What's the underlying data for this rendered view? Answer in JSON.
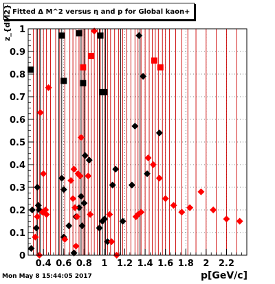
{
  "title": "Fitted Δ M^2 versus η and p for Global kaon+",
  "timestamp": "Mon May  8 15:44:05 2017",
  "colors": {
    "series_black": "#000000",
    "series_red": "#ff0000",
    "vline_red": "#cc0000",
    "vline_black": "#000000"
  },
  "chart_data": {
    "type": "scatter",
    "xlabel": "p[GeV/c]",
    "ylabel": "z_{dM2}",
    "xlim": [
      0.25,
      2.4
    ],
    "ylim": [
      0,
      1
    ],
    "x_ticks": [
      "0.4",
      "0.6",
      "0.8",
      "1",
      "1.2",
      "1.4",
      "1.6",
      "1.8",
      "2",
      "2.2"
    ],
    "y_ticks": [
      "0",
      "0.1",
      "0.2",
      "0.3",
      "0.4",
      "0.5",
      "0.6",
      "0.7",
      "0.8",
      "0.9",
      "1"
    ],
    "grid": true,
    "series": [
      {
        "color": "black",
        "markers": [
          {
            "x": 0.275,
            "y": 0.82,
            "shape": "square"
          },
          {
            "x": 0.58,
            "y": 0.97,
            "shape": "square"
          },
          {
            "x": 0.6,
            "y": 0.77,
            "shape": "square"
          },
          {
            "x": 0.75,
            "y": 0.98,
            "shape": "square"
          },
          {
            "x": 0.79,
            "y": 0.76,
            "shape": "square"
          },
          {
            "x": 0.96,
            "y": 0.97,
            "shape": "square"
          },
          {
            "x": 0.98,
            "y": 0.72,
            "shape": "square"
          },
          {
            "x": 1.0,
            "y": 0.72,
            "shape": "square"
          },
          {
            "x": 0.28,
            "y": 0.03,
            "shape": "diamond"
          },
          {
            "x": 0.29,
            "y": 0.2,
            "shape": "diamond"
          },
          {
            "x": 0.33,
            "y": 0.12,
            "shape": "diamond"
          },
          {
            "x": 0.34,
            "y": 0.3,
            "shape": "diamond"
          },
          {
            "x": 0.35,
            "y": 0.22,
            "shape": "diamond"
          },
          {
            "x": 0.36,
            "y": 0.2,
            "shape": "diamond"
          },
          {
            "x": 0.58,
            "y": 0.34,
            "shape": "diamond"
          },
          {
            "x": 0.6,
            "y": 0.29,
            "shape": "diamond"
          },
          {
            "x": 0.6,
            "y": 0.08,
            "shape": "diamond"
          },
          {
            "x": 0.65,
            "y": 0.13,
            "shape": "diamond"
          },
          {
            "x": 0.7,
            "y": 0.01,
            "shape": "diamond"
          },
          {
            "x": 0.72,
            "y": 0.17,
            "shape": "diamond"
          },
          {
            "x": 0.75,
            "y": 0.21,
            "shape": "diamond"
          },
          {
            "x": 0.77,
            "y": 0.26,
            "shape": "diamond"
          },
          {
            "x": 0.78,
            "y": 0.13,
            "shape": "diamond"
          },
          {
            "x": 0.8,
            "y": 0.23,
            "shape": "diamond"
          },
          {
            "x": 0.81,
            "y": 0.44,
            "shape": "diamond"
          },
          {
            "x": 0.85,
            "y": 0.42,
            "shape": "diamond"
          },
          {
            "x": 0.95,
            "y": 0.12,
            "shape": "diamond"
          },
          {
            "x": 0.98,
            "y": 0.15,
            "shape": "diamond"
          },
          {
            "x": 1.0,
            "y": 0.16,
            "shape": "diamond"
          },
          {
            "x": 1.03,
            "y": 0.06,
            "shape": "diamond"
          },
          {
            "x": 1.08,
            "y": 0.31,
            "shape": "diamond"
          },
          {
            "x": 1.11,
            "y": 0.38,
            "shape": "diamond"
          },
          {
            "x": 1.18,
            "y": 0.15,
            "shape": "diamond"
          },
          {
            "x": 1.27,
            "y": 0.31,
            "shape": "diamond"
          },
          {
            "x": 1.3,
            "y": 0.57,
            "shape": "diamond"
          },
          {
            "x": 1.34,
            "y": 0.97,
            "shape": "diamond"
          },
          {
            "x": 1.38,
            "y": 0.79,
            "shape": "diamond"
          },
          {
            "x": 1.42,
            "y": 0.36,
            "shape": "diamond"
          },
          {
            "x": 1.54,
            "y": 0.54,
            "shape": "diamond"
          }
        ]
      },
      {
        "color": "red",
        "markers": [
          {
            "x": 0.79,
            "y": 0.83,
            "shape": "square"
          },
          {
            "x": 0.87,
            "y": 0.88,
            "shape": "square"
          },
          {
            "x": 1.49,
            "y": 0.86,
            "shape": "square"
          },
          {
            "x": 1.55,
            "y": 0.83,
            "shape": "square"
          },
          {
            "x": 0.32,
            "y": 0.08,
            "shape": "diamond"
          },
          {
            "x": 0.34,
            "y": 0.17,
            "shape": "diamond"
          },
          {
            "x": 0.36,
            "y": 0.0,
            "shape": "diamond"
          },
          {
            "x": 0.37,
            "y": 0.63,
            "shape": "diamond"
          },
          {
            "x": 0.39,
            "y": 0.19,
            "shape": "diamond"
          },
          {
            "x": 0.4,
            "y": 0.36,
            "shape": "diamond"
          },
          {
            "x": 0.42,
            "y": 0.2,
            "shape": "diamond"
          },
          {
            "x": 0.43,
            "y": 0.18,
            "shape": "diamond"
          },
          {
            "x": 0.45,
            "y": 0.74,
            "shape": "diamond"
          },
          {
            "x": 0.61,
            "y": 0.07,
            "shape": "diamond"
          },
          {
            "x": 0.67,
            "y": 0.33,
            "shape": "diamond"
          },
          {
            "x": 0.69,
            "y": 0.25,
            "shape": "diamond"
          },
          {
            "x": 0.7,
            "y": 0.38,
            "shape": "diamond"
          },
          {
            "x": 0.71,
            "y": 0.21,
            "shape": "diamond"
          },
          {
            "x": 0.72,
            "y": 0.04,
            "shape": "diamond"
          },
          {
            "x": 0.73,
            "y": 0.17,
            "shape": "diamond"
          },
          {
            "x": 0.74,
            "y": 0.36,
            "shape": "diamond"
          },
          {
            "x": 0.76,
            "y": 0.35,
            "shape": "diamond"
          },
          {
            "x": 0.77,
            "y": 0.52,
            "shape": "diamond"
          },
          {
            "x": 0.84,
            "y": 0.35,
            "shape": "diamond"
          },
          {
            "x": 0.86,
            "y": 0.18,
            "shape": "diamond"
          },
          {
            "x": 0.9,
            "y": 0.99,
            "shape": "diamond"
          },
          {
            "x": 1.05,
            "y": 0.18,
            "shape": "diamond"
          },
          {
            "x": 1.07,
            "y": 0.06,
            "shape": "diamond"
          },
          {
            "x": 1.12,
            "y": 0.0,
            "shape": "diamond"
          },
          {
            "x": 1.31,
            "y": 0.17,
            "shape": "diamond"
          },
          {
            "x": 1.33,
            "y": 0.18,
            "shape": "diamond"
          },
          {
            "x": 1.36,
            "y": 0.19,
            "shape": "diamond"
          },
          {
            "x": 1.43,
            "y": 0.43,
            "shape": "diamond"
          },
          {
            "x": 1.48,
            "y": 0.4,
            "shape": "diamond"
          },
          {
            "x": 1.54,
            "y": 0.34,
            "shape": "diamond"
          },
          {
            "x": 1.6,
            "y": 0.25,
            "shape": "diamond"
          },
          {
            "x": 1.68,
            "y": 0.22,
            "shape": "diamond"
          },
          {
            "x": 1.76,
            "y": 0.19,
            "shape": "diamond"
          },
          {
            "x": 1.84,
            "y": 0.21,
            "shape": "diamond"
          },
          {
            "x": 1.95,
            "y": 0.28,
            "shape": "diamond"
          },
          {
            "x": 2.07,
            "y": 0.2,
            "shape": "diamond"
          },
          {
            "x": 2.2,
            "y": 0.16,
            "shape": "diamond"
          },
          {
            "x": 2.33,
            "y": 0.15,
            "shape": "diamond"
          }
        ]
      }
    ],
    "red_vertical_lines_x": [
      0.3,
      0.33,
      0.36,
      0.4,
      0.43,
      0.47,
      0.52,
      0.56,
      0.61,
      0.66,
      0.69,
      0.72,
      0.75,
      0.77,
      0.79,
      0.81,
      0.84,
      0.87,
      0.9,
      0.93,
      0.96,
      1.0,
      1.03,
      1.06,
      1.1,
      1.14,
      1.18,
      1.22,
      1.26,
      1.3,
      1.33,
      1.36,
      1.4,
      1.44,
      1.47,
      1.5,
      1.53,
      1.57,
      1.6,
      1.64,
      1.7,
      1.76,
      1.82,
      1.9,
      2.0,
      2.1,
      2.2,
      2.3
    ],
    "black_vertical_lines_x": [
      0.34,
      0.37,
      0.55,
      0.58,
      0.77,
      0.8,
      0.95,
      0.98,
      1.01,
      1.16,
      1.35
    ]
  }
}
